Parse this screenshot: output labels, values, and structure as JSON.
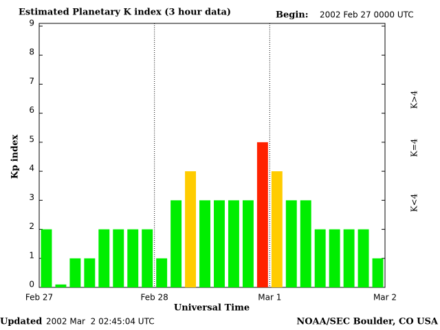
{
  "chart_data": {
    "type": "bar",
    "title": "Estimated Planetary K index (3 hour data)",
    "begin_label": "Begin:",
    "begin": "2002 Feb 27 0000 UTC",
    "updated_label": "Updated",
    "updated": "2002 Mar  2 02:45:04 UTC",
    "source": "NOAA/SEC Boulder, CO USA",
    "ylabel": "Kp index",
    "xlabel": "Universal Time",
    "x": [
      0,
      3,
      6,
      9,
      12,
      15,
      18,
      21,
      24,
      27,
      30,
      33,
      36,
      39,
      42,
      45,
      48,
      51,
      54,
      57,
      60,
      63,
      66,
      69
    ],
    "bar_width": 3,
    "values": [
      2,
      0.1,
      1,
      1,
      2,
      2,
      2,
      2,
      1,
      3,
      4,
      3,
      3,
      3,
      3,
      5,
      4,
      3,
      3,
      2,
      2,
      2,
      2,
      1
    ],
    "colors": [
      "#00ee00",
      "#00ee00",
      "#00ee00",
      "#00ee00",
      "#00ee00",
      "#00ee00",
      "#00ee00",
      "#00ee00",
      "#00ee00",
      "#00ee00",
      "#ffcc00",
      "#00ee00",
      "#00ee00",
      "#00ee00",
      "#00ee00",
      "#ff2200",
      "#ffcc00",
      "#00ee00",
      "#00ee00",
      "#00ee00",
      "#00ee00",
      "#00ee00",
      "#00ee00",
      "#00ee00"
    ],
    "xlim": [
      0,
      72
    ],
    "xticks": [
      {
        "value": 0,
        "label": "Feb 27"
      },
      {
        "value": 24,
        "label": "Feb 28"
      },
      {
        "value": 48,
        "label": "Mar 1"
      },
      {
        "value": 72,
        "label": "Mar 2"
      }
    ],
    "ylim": [
      0,
      9
    ],
    "yticks": [
      0,
      1,
      2,
      3,
      4,
      5,
      6,
      7,
      8,
      9
    ],
    "legend": [
      {
        "name": "K<4",
        "color": "#00ee00"
      },
      {
        "name": "K=4",
        "color": "#ffcc00"
      },
      {
        "name": "K>4",
        "color": "#ff2200"
      }
    ]
  }
}
